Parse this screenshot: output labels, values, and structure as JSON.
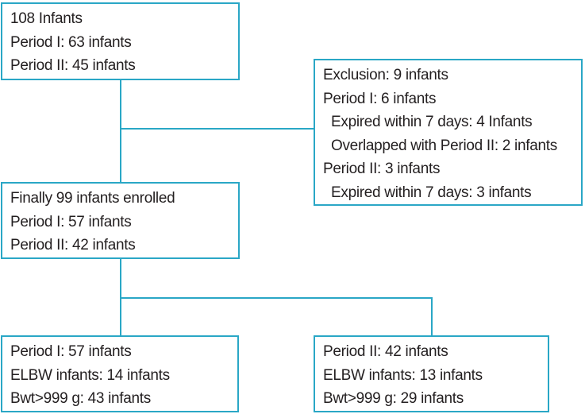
{
  "boxes": {
    "top": {
      "lines": [
        "108 Infants",
        "Period I: 63 infants",
        "Period II: 45 infants"
      ]
    },
    "exclusion": {
      "lines": [
        "Exclusion: 9 infants",
        "Period I: 6 infants",
        "Expired within 7 days: 4 Infants",
        "Overlapped with Period II: 2 infants",
        "Period II: 3 infants",
        "Expired within 7 days: 3 infants"
      ]
    },
    "enrolled": {
      "lines": [
        "Finally 99 infants enrolled",
        "Period I: 57 infants",
        "Period II: 42 infants"
      ]
    },
    "period1": {
      "lines": [
        "Period I: 57 infants",
        "ELBW infants: 14 infants",
        "Bwt>999 g: 43 infants"
      ]
    },
    "period2": {
      "lines": [
        "Period II: 42 infants",
        "ELBW infants: 13 infants",
        "Bwt>999 g: 29 infants"
      ]
    }
  },
  "colors": {
    "border": "#2aa7c6",
    "text": "#231f20"
  }
}
